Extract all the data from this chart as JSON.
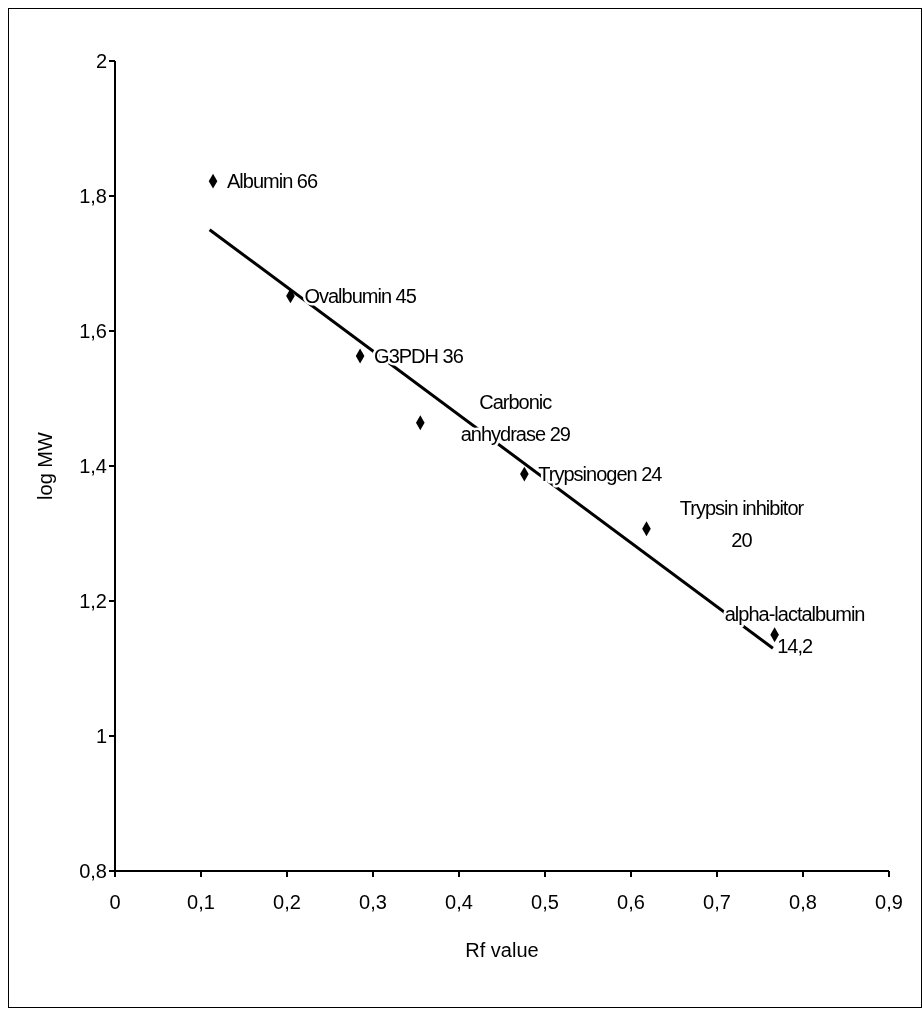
{
  "chart_data": {
    "type": "scatter",
    "xlabel": "Rf value",
    "ylabel": "log MW",
    "xlim": [
      0,
      0.9
    ],
    "xticks": [
      {
        "value": 0,
        "label": "0"
      },
      {
        "value": 0.1,
        "label": "0,1"
      },
      {
        "value": 0.2,
        "label": "0,2"
      },
      {
        "value": 0.3,
        "label": "0,3"
      },
      {
        "value": 0.4,
        "label": "0,4"
      },
      {
        "value": 0.5,
        "label": "0,5"
      },
      {
        "value": 0.6,
        "label": "0,6"
      },
      {
        "value": 0.7,
        "label": "0,7"
      },
      {
        "value": 0.8,
        "label": "0,8"
      },
      {
        "value": 0.9,
        "label": "0,9"
      }
    ],
    "ylim": [
      0.8,
      2
    ],
    "yticks": [
      {
        "value": 0.8,
        "label": "0,8"
      },
      {
        "value": 1,
        "label": "1"
      },
      {
        "value": 1.2,
        "label": "1,2"
      },
      {
        "value": 1.4,
        "label": "1,4"
      },
      {
        "value": 1.6,
        "label": "1,6"
      },
      {
        "value": 1.8,
        "label": "1,8"
      },
      {
        "value": 2,
        "label": "2"
      }
    ],
    "marker": "diamond",
    "series": [
      {
        "color": "#000000",
        "x": [
          0.114,
          0.204,
          0.285,
          0.355,
          0.476,
          0.618,
          0.767
        ],
        "values": [
          1.822,
          1.652,
          1.563,
          1.464,
          1.388,
          1.307,
          1.15
        ]
      },
      {
        "type": "line",
        "color": "#000000",
        "marker": "none",
        "x": [
          0.11,
          0.765
        ],
        "values": [
          1.75,
          1.13
        ]
      }
    ],
    "annotations": [
      {
        "text": "Albumin 66",
        "x": 0.114,
        "y": 1.822
      },
      {
        "text": "Ovalbumin 45",
        "x": 0.204,
        "y": 1.652
      },
      {
        "text": "G3PDH 36",
        "x": 0.285,
        "y": 1.563
      },
      {
        "text": "Carbonic\nanhydrase 29",
        "x": 0.355,
        "y": 1.464
      },
      {
        "text": "Trypsinogen 24",
        "x": 0.476,
        "y": 1.388
      },
      {
        "text": "Trypsin inhibitor\n20",
        "x": 0.618,
        "y": 1.307
      },
      {
        "text": "alpha-lactalbumin\n14,2",
        "x": 0.767,
        "y": 1.15
      }
    ]
  }
}
